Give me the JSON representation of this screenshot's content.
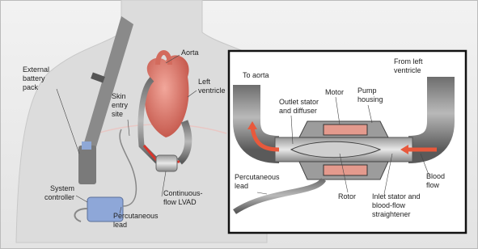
{
  "left_labels": [
    {
      "lines": [
        "Aorta"
      ]
    },
    {
      "lines": [
        "External",
        "battery",
        "pack"
      ]
    },
    {
      "lines": [
        "Left",
        "ventricle"
      ]
    },
    {
      "lines": [
        "Skin",
        "entry",
        "site"
      ]
    },
    {
      "lines": [
        "System",
        "controller"
      ]
    },
    {
      "lines": [
        "Continuous-",
        "flow LVAD"
      ]
    },
    {
      "lines": [
        "Percutaneous",
        "lead"
      ]
    }
  ],
  "inset_labels": [
    {
      "lines": [
        "From left",
        "ventricle"
      ]
    },
    {
      "lines": [
        "To aorta"
      ]
    },
    {
      "lines": [
        "Motor"
      ]
    },
    {
      "lines": [
        "Pump",
        "housing"
      ]
    },
    {
      "lines": [
        "Outlet stator",
        "and diffuser"
      ]
    },
    {
      "lines": [
        "Blood",
        "flow"
      ]
    },
    {
      "lines": [
        "Percutaneous",
        "lead"
      ]
    },
    {
      "lines": [
        "Rotor"
      ]
    },
    {
      "lines": [
        "Inlet stator and",
        "blood-flow",
        "straightener"
      ]
    }
  ]
}
